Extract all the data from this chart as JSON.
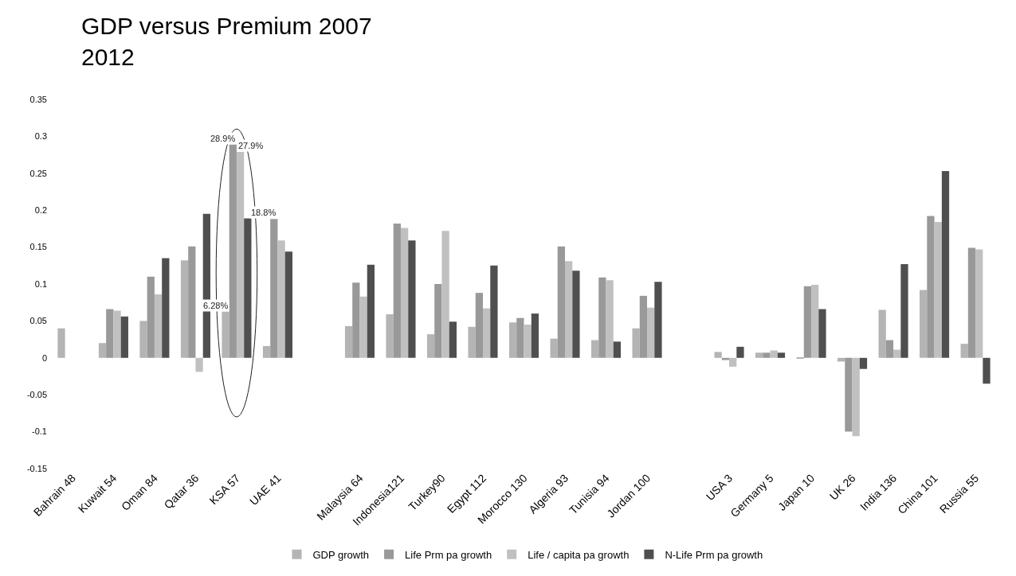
{
  "chart_data": {
    "type": "bar",
    "title": "GDP versus Premium 2007\n2012",
    "categories": [
      "Bahrain 48",
      "Kuwait 54",
      "Oman 84",
      "Qatar 36",
      "KSA 57",
      "UAE 41",
      null,
      "Malaysia 64",
      "Indonesia121",
      "Turkey90",
      "Egypt 112",
      "Morocco 130",
      "Algeria 93",
      "Tunisia 94",
      "Jordan 100",
      null,
      "USA 3",
      "Germany 5",
      "Japan 10",
      "UK 26",
      "India 136",
      "China 101",
      "Russia 55"
    ],
    "series": [
      {
        "name": "GDP growth",
        "color": "#b4b4b4",
        "values": [
          0.04,
          0.02,
          0.05,
          0.132,
          0.0628,
          0.016,
          null,
          0.043,
          0.059,
          0.032,
          0.042,
          0.048,
          0.026,
          0.024,
          0.04,
          null,
          0.008,
          0.007,
          -0.001,
          -0.005,
          0.065,
          0.092,
          0.019
        ],
        "value_labels": [
          null,
          null,
          null,
          null,
          "6.28%",
          null,
          null,
          null,
          null,
          null,
          null,
          null,
          null,
          null,
          null,
          null,
          null,
          null,
          null,
          null,
          null,
          null,
          null
        ]
      },
      {
        "name": "Life Prm pa growth",
        "color": "#999999",
        "values": [
          null,
          0.066,
          0.11,
          0.151,
          0.289,
          0.188,
          null,
          0.102,
          0.182,
          0.1,
          0.088,
          0.054,
          0.151,
          0.109,
          0.084,
          null,
          -0.003,
          0.007,
          0.097,
          -0.1,
          0.024,
          0.192,
          0.149
        ],
        "value_labels": [
          null,
          null,
          null,
          null,
          "28.9%",
          "18.8%",
          null,
          null,
          null,
          null,
          null,
          null,
          null,
          null,
          null,
          null,
          null,
          null,
          null,
          null,
          null,
          null,
          null
        ]
      },
      {
        "name": "Life / capita pa growth",
        "color": "#c0c0c0",
        "values": [
          null,
          0.064,
          0.086,
          -0.019,
          0.279,
          0.159,
          null,
          0.083,
          0.176,
          0.172,
          0.067,
          0.045,
          0.131,
          0.105,
          0.068,
          null,
          -0.012,
          0.01,
          0.099,
          -0.106,
          0.011,
          0.184,
          0.147
        ],
        "value_labels": [
          null,
          null,
          null,
          null,
          "27.9%",
          null,
          null,
          null,
          null,
          null,
          null,
          null,
          null,
          null,
          null,
          null,
          null,
          null,
          null,
          null,
          null,
          null,
          null
        ]
      },
      {
        "name": "N-Life Prm pa growth",
        "color": "#4f4f4f",
        "values": [
          null,
          0.056,
          0.135,
          0.195,
          0.189,
          0.144,
          null,
          0.126,
          0.159,
          0.049,
          0.125,
          0.06,
          0.118,
          0.022,
          0.103,
          null,
          0.015,
          0.007,
          0.066,
          -0.015,
          0.127,
          0.253,
          -0.035
        ]
      }
    ],
    "ylim": [
      -0.15,
      0.35
    ],
    "yticks": [
      -0.15,
      -0.1,
      -0.05,
      0,
      0.05,
      0.1,
      0.15,
      0.2,
      0.25,
      0.3,
      0.35
    ],
    "legend": "bottom"
  }
}
